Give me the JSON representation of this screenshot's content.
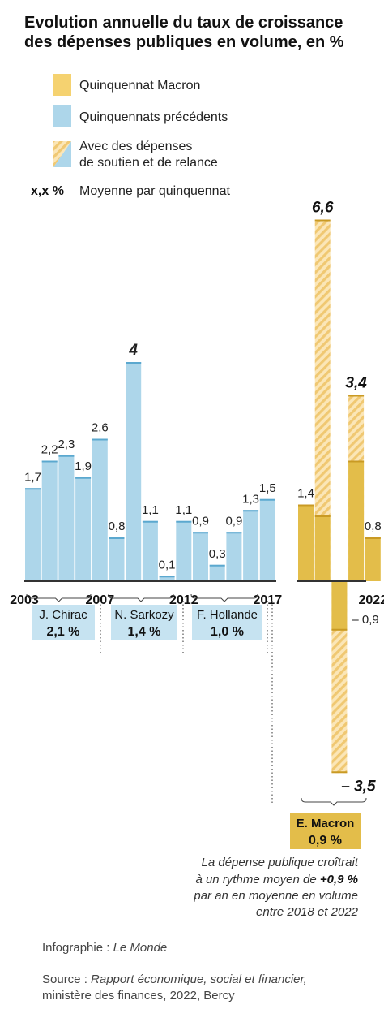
{
  "chart_data": {
    "type": "bar",
    "title": "Evolution annuelle du taux de croissance des dépenses publiques en volume, en %",
    "title_lines": [
      "Evolution annuelle du taux de croissance",
      "des dépenses publiques en volume, en %"
    ],
    "legend": {
      "placement": "top-left",
      "macron": "Quinquennat Macron",
      "previous": "Quinquennats précédents",
      "relance_line1": "Avec des dépenses",
      "relance_line2": "de soutien et de relance",
      "avg_symbol": "x,x %",
      "avg_label": "Moyenne par quinquennat"
    },
    "years": [
      2003,
      2004,
      2005,
      2006,
      2007,
      2008,
      2009,
      2010,
      2011,
      2012,
      2013,
      2014,
      2015,
      2016,
      2017,
      2018,
      2019,
      2020,
      2021,
      2022
    ],
    "x_tick_labels": [
      {
        "year": 2003,
        "label": "2003"
      },
      {
        "year": 2007,
        "label": "2007"
      },
      {
        "year": 2012,
        "label": "2012"
      },
      {
        "year": 2017,
        "label": "2017"
      },
      {
        "year": 2022,
        "label": "2022"
      }
    ],
    "series": [
      {
        "name": "Quinquennats précédents",
        "color": "#add6ea",
        "points": [
          {
            "year": 2003,
            "value": 1.7,
            "label": "1,7"
          },
          {
            "year": 2004,
            "value": 2.2,
            "label": "2,2"
          },
          {
            "year": 2005,
            "value": 2.3,
            "label": "2,3"
          },
          {
            "year": 2006,
            "value": 1.9,
            "label": "1,9"
          },
          {
            "year": 2007,
            "value": 2.6,
            "label": "2,6"
          },
          {
            "year": 2008,
            "value": 0.8,
            "label": "0,8"
          },
          {
            "year": 2009,
            "value": 4.0,
            "label": "4"
          },
          {
            "year": 2010,
            "value": 1.1,
            "label": "1,1"
          },
          {
            "year": 2011,
            "value": 0.1,
            "label": "0,1"
          },
          {
            "year": 2012,
            "value": 1.1,
            "label": "1,1"
          },
          {
            "year": 2013,
            "value": 0.9,
            "label": "0,9"
          },
          {
            "year": 2014,
            "value": 0.3,
            "label": "0,3"
          },
          {
            "year": 2015,
            "value": 0.9,
            "label": "0,9"
          },
          {
            "year": 2016,
            "value": 1.3,
            "label": "1,3"
          },
          {
            "year": 2017,
            "value": 1.5,
            "label": "1,5"
          }
        ]
      },
      {
        "name": "Quinquennat Macron",
        "color": "#e3bd4a",
        "points": [
          {
            "year": 2018,
            "value": 1.4,
            "label": "1,4"
          },
          {
            "year": 2019,
            "value": 1.2
          },
          {
            "year": 2020,
            "value": -0.9,
            "label": "– 0,9"
          },
          {
            "year": 2021,
            "value": 2.2
          },
          {
            "year": 2022,
            "value": 0.8,
            "label": "0,8"
          }
        ]
      },
      {
        "name": "Avec des dépenses de soutien et de relance",
        "color": "#f4d48c",
        "points": [
          {
            "year": 2020,
            "value": -3.5,
            "label": "– 3,5"
          },
          {
            "year": 2019,
            "value": 6.6,
            "label": "6,6"
          },
          {
            "year": 2021,
            "value": 3.4,
            "label": "3,4"
          }
        ]
      }
    ],
    "ylim": [
      -3.6,
      6.8
    ],
    "grid": false,
    "quinquennats": [
      {
        "name": "J. Chirac",
        "average": "2,1 %",
        "from": 2003,
        "to": 2007
      },
      {
        "name": "N. Sarkozy",
        "average": "1,4 %",
        "from": 2008,
        "to": 2012
      },
      {
        "name": "F. Hollande",
        "average": "1,0 %",
        "from": 2013,
        "to": 2017
      },
      {
        "name": "E. Macron",
        "average": "0,9 %",
        "from": 2018,
        "to": 2022
      }
    ],
    "annotation": {
      "line1": "La dépense publique croîtrait",
      "line2_pre": "à un rythme moyen de ",
      "line2_bold": "+0,9 %",
      "line3": "par an en moyenne en volume",
      "line4": "entre 2018 et 2022"
    },
    "colors": {
      "previous": "#add6ea",
      "previous_top": "#5ba8cf",
      "macron": "#e3bd4a",
      "macron_top": "#c99a24",
      "relance": "#f4d48c",
      "box_blue": "#c6e3f1",
      "box_gold": "#e3bd4a"
    }
  },
  "credits": {
    "infographie_pre": "Infographie : ",
    "infographie_name": "Le Monde",
    "source_pre": "Source : ",
    "source_italic": "Rapport économique, social et financier,",
    "source_line2": "ministère des finances, 2022, Bercy"
  }
}
